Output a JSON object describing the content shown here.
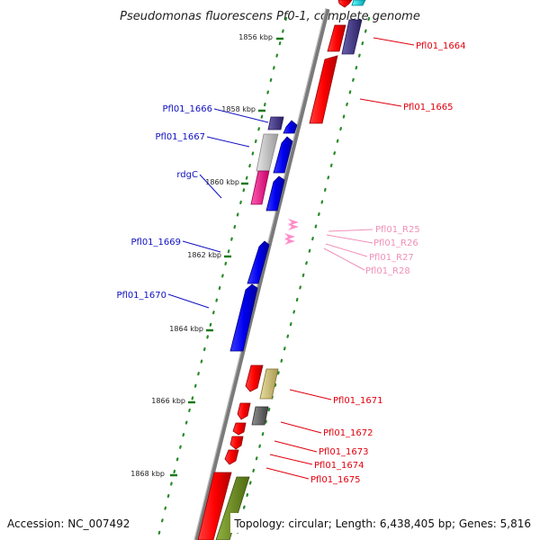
{
  "title": "Pseudomonas fluorescens Pf0-1, complete genome",
  "footer": {
    "accession": "Accession: NC_007492",
    "summary": "Topology: circular; Length: 6,438,405 bp; Genes: 5,816"
  },
  "kbp_labels": [
    "1856 kbp",
    "1858 kbp",
    "1860 kbp",
    "1862 kbp",
    "1864 kbp",
    "1866 kbp",
    "1868 kbp"
  ],
  "gene_labels": [
    {
      "text": "Pfl01_1664",
      "color": "#e0000e"
    },
    {
      "text": "Pfl01_1665",
      "color": "#e0000e"
    },
    {
      "text": "Pfl01_1666",
      "color": "#1010c0"
    },
    {
      "text": "Pfl01_1667",
      "color": "#1010c0"
    },
    {
      "text": "rdgC",
      "color": "#1010c0"
    },
    {
      "text": "Pfl01_R25",
      "color": "#f090b8"
    },
    {
      "text": "Pfl01_R26",
      "color": "#f090b8"
    },
    {
      "text": "Pfl01_R27",
      "color": "#f090b8"
    },
    {
      "text": "Pfl01_R28",
      "color": "#f090b8"
    },
    {
      "text": "Pfl01_1669",
      "color": "#1010c0"
    },
    {
      "text": "Pfl01_1670",
      "color": "#1010c0"
    },
    {
      "text": "Pfl01_1671",
      "color": "#e0000e"
    },
    {
      "text": "Pfl01_1672",
      "color": "#e0000e"
    },
    {
      "text": "Pfl01_1673",
      "color": "#e0000e"
    },
    {
      "text": "Pfl01_1674",
      "color": "#e0000e"
    },
    {
      "text": "Pfl01_1675",
      "color": "#e0000e"
    }
  ]
}
